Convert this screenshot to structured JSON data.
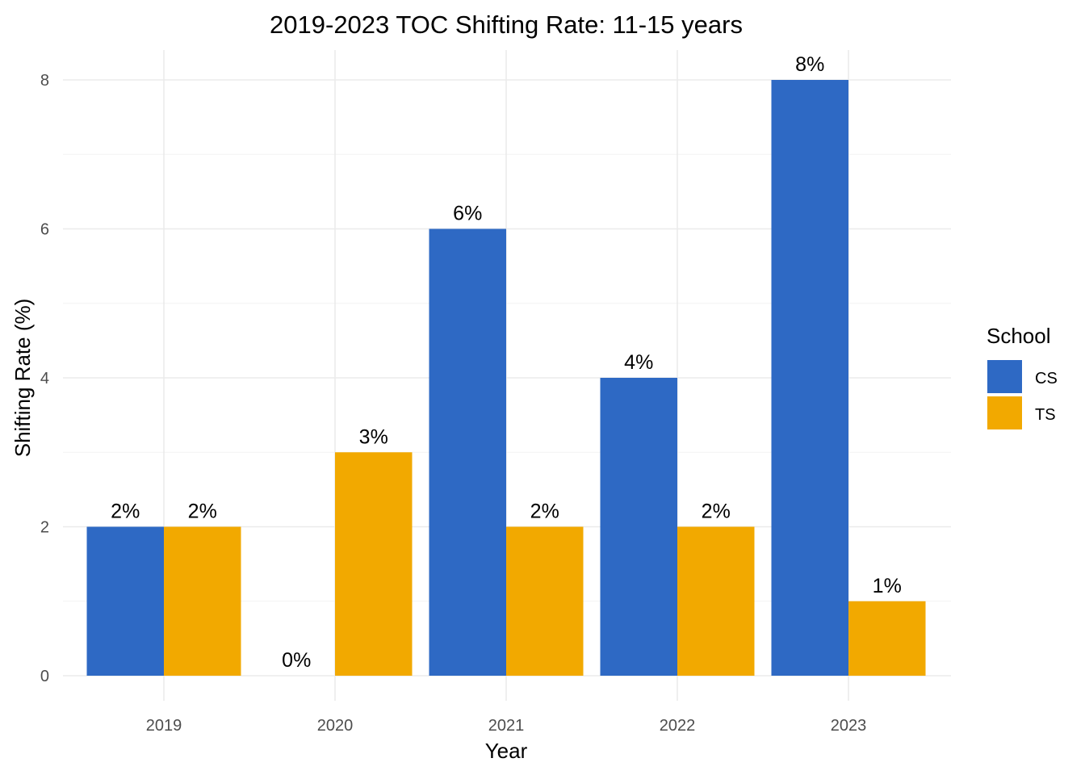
{
  "chart_data": {
    "type": "bar",
    "title": "2019-2023 TOC Shifting Rate: 11-15 years",
    "xlabel": "Year",
    "ylabel": "Shifting Rate (%)",
    "categories": [
      "2019",
      "2020",
      "2021",
      "2022",
      "2023"
    ],
    "series": [
      {
        "name": "CS",
        "color": "#2e69c4",
        "values": [
          2,
          0,
          6,
          4,
          8
        ],
        "labels": [
          "2%",
          "0%",
          "6%",
          "4%",
          "8%"
        ]
      },
      {
        "name": "TS",
        "color": "#f2a900",
        "values": [
          2,
          3,
          2,
          2,
          1
        ],
        "labels": [
          "2%",
          "3%",
          "2%",
          "2%",
          "1%"
        ]
      }
    ],
    "ylim": [
      0,
      8.4
    ],
    "yticks": [
      0,
      2,
      4,
      6,
      8
    ],
    "grid": true,
    "legend": {
      "title": "School",
      "position": "right"
    }
  }
}
